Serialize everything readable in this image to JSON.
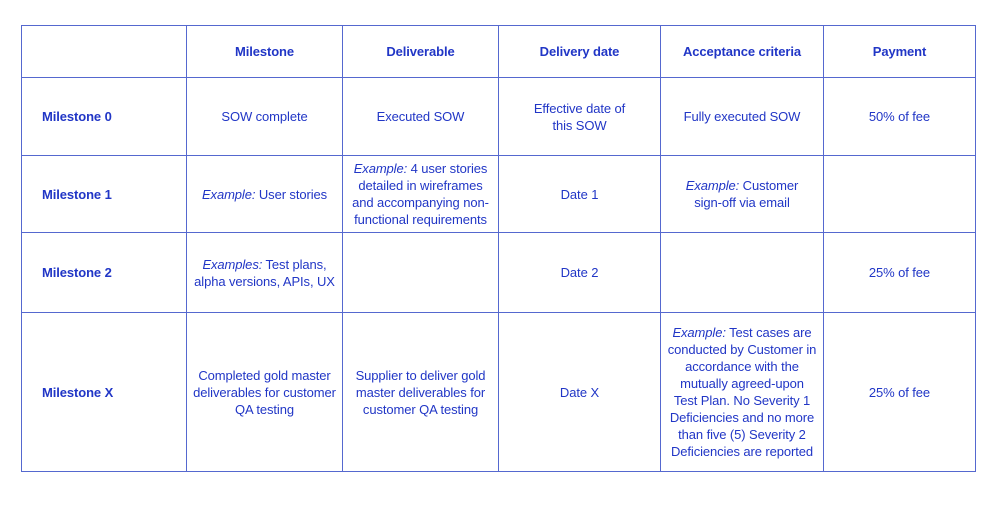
{
  "colors": {
    "text": "#2136c6",
    "border": "#5568cf",
    "background": "#ffffff"
  },
  "table": {
    "headers": {
      "corner": "",
      "milestone": "Milestone",
      "deliverable": "Deliverable",
      "delivery_date": "Delivery date",
      "acceptance_criteria": "Acceptance criteria",
      "payment": "Payment"
    },
    "rows": [
      {
        "label": "Milestone 0",
        "milestone": {
          "prefix": "",
          "text": "SOW complete"
        },
        "deliverable": {
          "prefix": "",
          "text": "Executed SOW"
        },
        "delivery_date": {
          "prefix": "",
          "text": "Effective date of\nthis SOW"
        },
        "acceptance_criteria": {
          "prefix": "",
          "text": "Fully executed SOW"
        },
        "payment": {
          "prefix": "",
          "text": "50% of fee"
        }
      },
      {
        "label": "Milestone 1",
        "milestone": {
          "prefix": "Example:",
          "text": "User stories"
        },
        "deliverable": {
          "prefix": "Example:",
          "text": "4 user stories\ndetailed in wireframes\nand accompanying non-\nfunctional requirements"
        },
        "delivery_date": {
          "prefix": "",
          "text": "Date 1"
        },
        "acceptance_criteria": {
          "prefix": "Example:",
          "text": "Customer\nsign-off via email"
        },
        "payment": {
          "prefix": "",
          "text": ""
        }
      },
      {
        "label": "Milestone 2",
        "milestone": {
          "prefix": "Examples:",
          "text": "Test plans,\nalpha versions, APIs, UX"
        },
        "deliverable": {
          "prefix": "",
          "text": ""
        },
        "delivery_date": {
          "prefix": "",
          "text": "Date 2"
        },
        "acceptance_criteria": {
          "prefix": "",
          "text": ""
        },
        "payment": {
          "prefix": "",
          "text": "25% of fee"
        }
      },
      {
        "label": "Milestone X",
        "milestone": {
          "prefix": "",
          "text": "Completed gold master\ndeliverables for customer\nQA testing"
        },
        "deliverable": {
          "prefix": "",
          "text": "Supplier to deliver gold\nmaster deliverables for\ncustomer QA testing"
        },
        "delivery_date": {
          "prefix": "",
          "text": "Date X"
        },
        "acceptance_criteria": {
          "prefix": "Example:",
          "text": "Test cases are\nconducted by Customer in\naccordance with the\nmutually agreed-upon\nTest Plan. No Severity 1\nDeficiencies and no more\nthan five (5) Severity 2\nDeficiencies are reported"
        },
        "payment": {
          "prefix": "",
          "text": "25% of fee"
        }
      }
    ]
  }
}
